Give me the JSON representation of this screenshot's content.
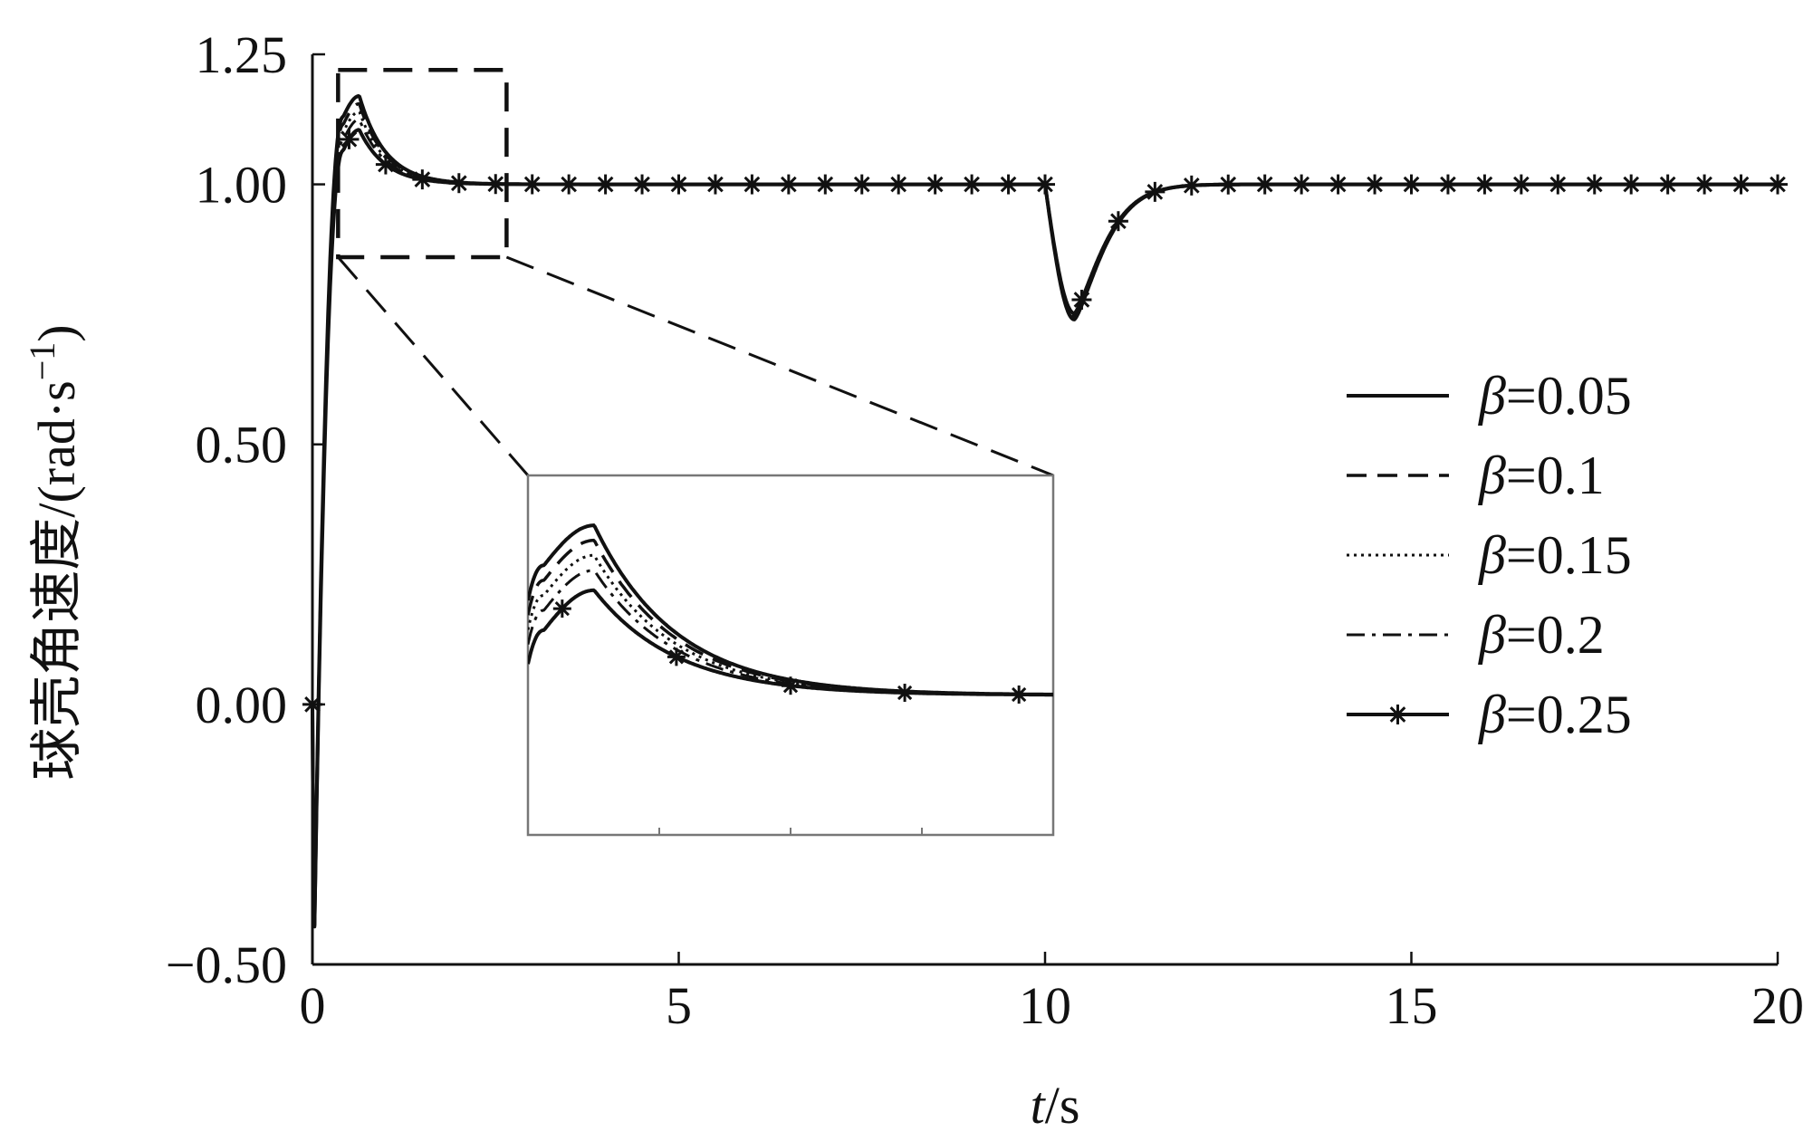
{
  "chart_data": {
    "type": "line",
    "title": "",
    "xlabel": "t/s",
    "xlabel_parts": {
      "var": "t",
      "unit": "/s"
    },
    "ylabel": "球壳角速度/(rad·s⁻¹)",
    "ylabel_parts": {
      "main": "球壳角速度/(rad·s",
      "sup": "−1",
      "tail": ")"
    },
    "xlim": [
      0,
      20
    ],
    "ylim": [
      -0.5,
      1.25
    ],
    "xticks": [
      0,
      5,
      10,
      15,
      20
    ],
    "xtick_labels": [
      "0",
      "5",
      "10",
      "15",
      "20"
    ],
    "yticks": [
      -0.5,
      0,
      0.5,
      1.0,
      1.25
    ],
    "ytick_labels": [
      "−0.50",
      "0.00",
      "0.50",
      "1.00",
      "1.25"
    ],
    "grid": false,
    "legend_position": "right",
    "zoom_region": {
      "x": [
        0.35,
        2.65
      ],
      "y": [
        0.86,
        1.22
      ]
    },
    "series": [
      {
        "name": "β=0.05",
        "style": "solid",
        "peak": 1.17,
        "dip": 0.74
      },
      {
        "name": "β=0.1",
        "style": "dashed",
        "peak": 1.155,
        "dip": 0.745
      },
      {
        "name": "β=0.15",
        "style": "dotted",
        "peak": 1.14,
        "dip": 0.748
      },
      {
        "name": "β=0.2",
        "style": "dashdot",
        "peak": 1.125,
        "dip": 0.75
      },
      {
        "name": "β=0.25",
        "style": "solid-star",
        "peak": 1.105,
        "dip": 0.752
      }
    ],
    "legend": [
      {
        "symbol": "β",
        "text": "=0.05"
      },
      {
        "symbol": "β",
        "text": "=0.1"
      },
      {
        "symbol": "β",
        "text": "=0.15"
      },
      {
        "symbol": "β",
        "text": "=0.2"
      },
      {
        "symbol": "β",
        "text": "=0.25"
      }
    ]
  }
}
